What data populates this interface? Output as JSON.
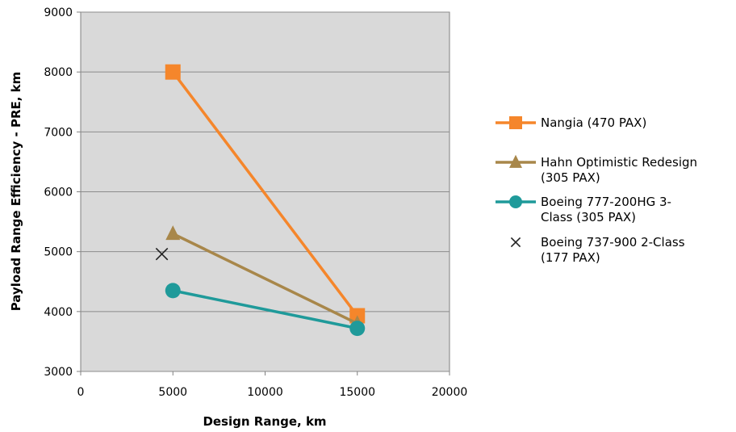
{
  "chart_data": {
    "type": "line",
    "xlabel": "Design Range, km",
    "ylabel": "Payload Range Efficiency - PRE, km",
    "xlim": [
      0,
      20000
    ],
    "ylim": [
      3000,
      9000
    ],
    "x_ticks": [
      "0",
      "5000",
      "10000",
      "15000",
      "20000"
    ],
    "y_ticks": [
      "3000",
      "4000",
      "5000",
      "6000",
      "7000",
      "8000",
      "9000"
    ],
    "grid": "horizontal",
    "plot_background": "#d9d9d9",
    "legend_position": "right",
    "series": [
      {
        "name": "Nangia (470 PAX)",
        "legend_lines": [
          "Nangia (470 PAX)"
        ],
        "color": "#f5862b",
        "marker": "square",
        "line": true,
        "points": [
          {
            "x": 5000,
            "y": 8000
          },
          {
            "x": 15000,
            "y": 3930
          }
        ]
      },
      {
        "name": "Hahn Optimistic Redesign (305 PAX)",
        "legend_lines": [
          "Hahn Optimistic Redesign",
          "(305 PAX)"
        ],
        "color": "#a8874a",
        "marker": "triangle",
        "line": true,
        "points": [
          {
            "x": 5000,
            "y": 5300
          },
          {
            "x": 15000,
            "y": 3800
          }
        ]
      },
      {
        "name": "Boeing 777-200HG 3-Class (305 PAX)",
        "legend_lines": [
          "Boeing 777-200HG 3-",
          "Class (305 PAX)"
        ],
        "color": "#1f9a9a",
        "marker": "circle",
        "line": true,
        "points": [
          {
            "x": 5000,
            "y": 4350
          },
          {
            "x": 15000,
            "y": 3720
          }
        ]
      },
      {
        "name": "Boeing 737-900 2-Class (177 PAX)",
        "legend_lines": [
          "Boeing 737-900 2-Class",
          "(177 PAX)"
        ],
        "color": "#222222",
        "marker": "x",
        "line": false,
        "points": [
          {
            "x": 4400,
            "y": 4960
          }
        ]
      }
    ]
  }
}
